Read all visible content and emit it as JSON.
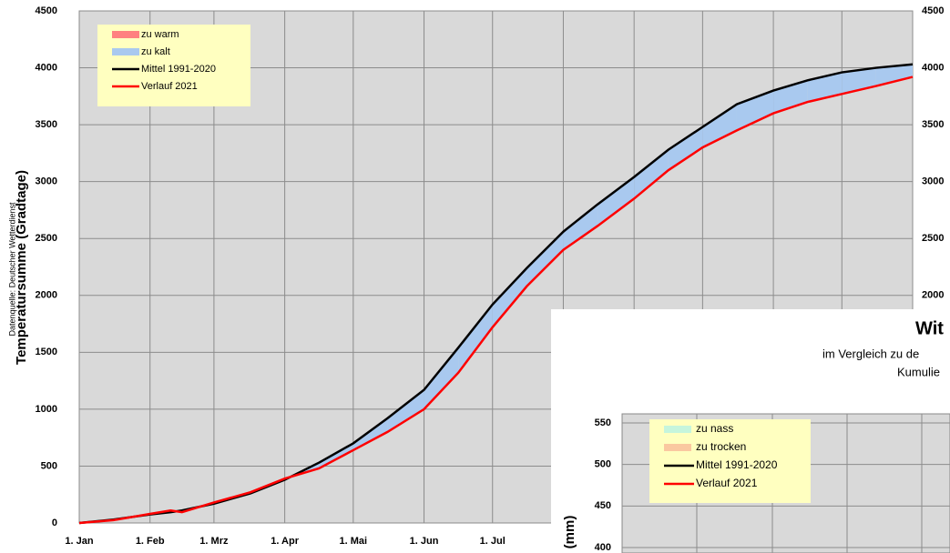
{
  "source": "Datenquelle: Deutscher Wetterdienst",
  "chart_data": [
    {
      "type": "line",
      "y_label": "Temperatursumme (Gradtage)",
      "xlim": [
        0,
        365
      ],
      "xticks": [
        {
          "value": 0,
          "label": "1. Jan"
        },
        {
          "value": 31,
          "label": "1. Feb"
        },
        {
          "value": 59,
          "label": "1. Mrz"
        },
        {
          "value": 90,
          "label": "1. Apr"
        },
        {
          "value": 120,
          "label": "1. Mai"
        },
        {
          "value": 151,
          "label": "1. Jun"
        },
        {
          "value": 181,
          "label": "1. Jul"
        },
        {
          "value": 212,
          "label": null
        },
        {
          "value": 243,
          "label": null
        },
        {
          "value": 273,
          "label": null
        },
        {
          "value": 304,
          "label": null
        },
        {
          "value": 334,
          "label": null
        },
        {
          "value": 365,
          "label": null
        }
      ],
      "ylim": [
        0,
        4500
      ],
      "yticks": [
        0,
        500,
        1000,
        1500,
        2000,
        2500,
        3000,
        3500,
        4000,
        4500
      ],
      "right_axis": true,
      "grid": true,
      "fills": [
        {
          "name": "zu warm",
          "color": "#ff8080"
        },
        {
          "name": "zu kalt",
          "color": "#a9c9ef"
        }
      ],
      "x": [
        0,
        15,
        31,
        40,
        45,
        59,
        75,
        90,
        105,
        120,
        135,
        151,
        166,
        181,
        196,
        212,
        227,
        243,
        258,
        273,
        288,
        304,
        319,
        334,
        349,
        365
      ],
      "series": [
        {
          "name": "Mittel 1991-2020",
          "color": "#000000",
          "values": [
            0,
            30,
            75,
            95,
            110,
            170,
            260,
            380,
            530,
            700,
            920,
            1170,
            1540,
            1920,
            2240,
            2560,
            2800,
            3040,
            3280,
            3480,
            3680,
            3800,
            3890,
            3960,
            4000,
            4030
          ]
        },
        {
          "name": "Verlauf 2021",
          "color": "#ff0000",
          "values": [
            0,
            25,
            80,
            110,
            95,
            180,
            270,
            390,
            480,
            640,
            800,
            1000,
            1320,
            1720,
            2080,
            2400,
            2610,
            2850,
            3100,
            3300,
            3450,
            3600,
            3700,
            3770,
            3840,
            3920
          ]
        }
      ]
    },
    {
      "type": "line",
      "title": "Wit",
      "subtitle": [
        "im Vergleich  zu de",
        "Kumulie"
      ],
      "y_label": "(mm)",
      "ylim": [
        400,
        550
      ],
      "yticks": [
        400,
        450,
        500,
        550
      ],
      "grid": true,
      "fills": [
        {
          "name": "zu nass",
          "color": "#c6f5dc"
        },
        {
          "name": "zu trocken",
          "color": "#fac8a0"
        }
      ],
      "series": [
        {
          "name": "Mittel 1991-2020",
          "color": "#000000",
          "values": []
        },
        {
          "name": "Verlauf 2021",
          "color": "#ff0000",
          "values": []
        }
      ]
    }
  ]
}
